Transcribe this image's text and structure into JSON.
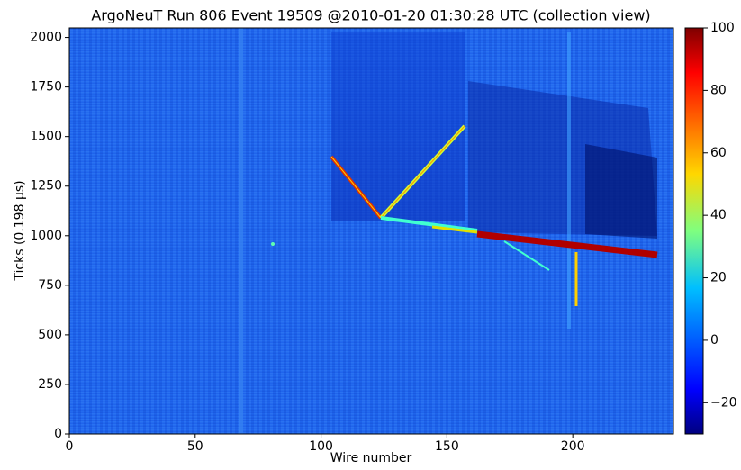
{
  "chart_data": {
    "type": "heatmap",
    "title": "ArgoNeuT Run 806 Event 19509 @2010-01-20 01:30:28 UTC (collection view)",
    "x_label": "Wire number",
    "y_label": "Ticks (0.198 μs)",
    "xlim": [
      0,
      240
    ],
    "xticks": [
      0,
      50,
      100,
      150,
      200
    ],
    "ylim": [
      0,
      2048
    ],
    "yticks": [
      0,
      250,
      500,
      750,
      1000,
      1250,
      1500,
      1750,
      2000
    ],
    "colormap": "jet",
    "clim": [
      -30,
      100
    ],
    "cticks": [
      {
        "value": -20,
        "label": "−20"
      },
      0,
      20,
      40,
      60,
      80,
      100
    ]
  }
}
